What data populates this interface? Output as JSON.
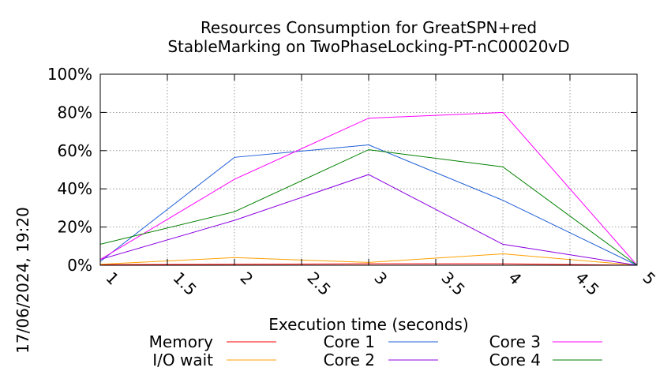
{
  "timestamp": "17/06/2024, 19:20",
  "chart_data": {
    "type": "line",
    "title": [
      "Resources Consumption for GreatSPN+red",
      "StableMarking on TwoPhaseLocking-PT-nC00020vD"
    ],
    "xlabel": "Execution time (seconds)",
    "ylabel": "",
    "xlim": [
      1,
      5
    ],
    "ylim": [
      0,
      100
    ],
    "x_ticks": [
      "1",
      "1.5",
      "2",
      "2.5",
      "3",
      "3.5",
      "4",
      "4.5",
      "5"
    ],
    "x_tick_values": [
      1,
      1.5,
      2,
      2.5,
      3,
      3.5,
      4,
      4.5,
      5
    ],
    "y_ticks": [
      "0%",
      "20%",
      "40%",
      "60%",
      "80%",
      "100%"
    ],
    "y_tick_values": [
      0,
      20,
      40,
      60,
      80,
      100
    ],
    "grid": true,
    "legend_position": "bottom",
    "x": [
      1,
      2,
      3,
      4,
      5
    ],
    "series": [
      {
        "name": "Memory",
        "color": "#ff0000",
        "values": [
          0.3,
          0.5,
          0.8,
          0.8,
          0
        ]
      },
      {
        "name": "I/O wait",
        "color": "#ffa000",
        "values": [
          0.5,
          4,
          1.5,
          6,
          0
        ]
      },
      {
        "name": "Core 1",
        "color": "#1f5fd6",
        "values": [
          2,
          56.5,
          63,
          34,
          0
        ]
      },
      {
        "name": "Core 2",
        "color": "#8a00e0",
        "values": [
          3,
          23.5,
          47.5,
          11,
          0
        ]
      },
      {
        "name": "Core 3",
        "color": "#ff00ff",
        "values": [
          3,
          45,
          77,
          80,
          0
        ]
      },
      {
        "name": "Core 4",
        "color": "#008000",
        "values": [
          11,
          28,
          60.5,
          51.5,
          0
        ]
      }
    ]
  }
}
